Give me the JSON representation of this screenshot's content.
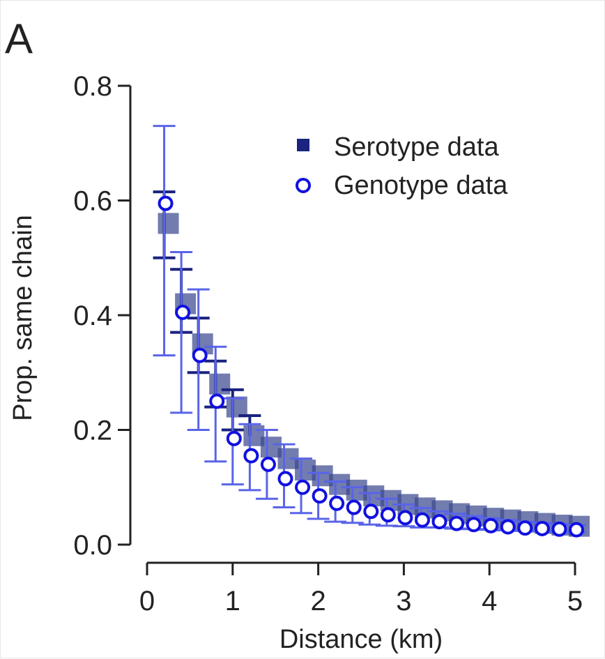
{
  "chart_data": {
    "type": "scatter",
    "panel_label": "A",
    "xlabel": "Distance (km)",
    "ylabel": "Prop. same chain",
    "xlim": [
      0,
      5
    ],
    "ylim": [
      0,
      0.8
    ],
    "x_ticks": [
      0,
      1,
      2,
      3,
      4,
      5
    ],
    "x_tick_labels": [
      "0",
      "1",
      "2",
      "3",
      "4",
      "5"
    ],
    "y_ticks": [
      0,
      0.2,
      0.4,
      0.6,
      0.8
    ],
    "y_tick_labels": [
      "0.0",
      "0.2",
      "0.4",
      "0.6",
      "0.8"
    ],
    "legend_position": "top-right",
    "series": [
      {
        "name": "Serotype data",
        "marker": "square",
        "color": "#1a237e",
        "error_color": "#1a237e",
        "x": [
          0.2,
          0.4,
          0.6,
          0.8,
          1.0,
          1.2,
          1.4,
          1.6,
          1.8,
          2.0,
          2.2,
          2.4,
          2.6,
          2.8,
          3.0,
          3.2,
          3.4,
          3.6,
          3.8,
          4.0,
          4.2,
          4.4,
          4.6,
          4.8,
          5.0
        ],
        "values": [
          0.56,
          0.42,
          0.35,
          0.28,
          0.24,
          0.19,
          0.17,
          0.15,
          0.13,
          0.12,
          0.105,
          0.095,
          0.085,
          0.077,
          0.07,
          0.064,
          0.059,
          0.054,
          0.05,
          0.046,
          0.043,
          0.04,
          0.037,
          0.034,
          0.032
        ],
        "err_low": [
          0.5,
          0.37,
          0.3,
          0.24,
          0.2,
          null,
          null,
          null,
          null,
          null,
          null,
          null,
          null,
          null,
          null,
          null,
          null,
          null,
          null,
          null,
          null,
          null,
          null,
          null,
          null
        ],
        "err_high": [
          0.615,
          0.48,
          0.395,
          0.32,
          0.27,
          0.225,
          null,
          null,
          null,
          null,
          null,
          null,
          null,
          null,
          null,
          null,
          null,
          null,
          null,
          null,
          null,
          null,
          null,
          null,
          null
        ]
      },
      {
        "name": "Genotype data",
        "marker": "circle",
        "color": "#1010e0",
        "error_color": "#5a64e8",
        "x": [
          0.2,
          0.4,
          0.6,
          0.8,
          1.0,
          1.2,
          1.4,
          1.6,
          1.8,
          2.0,
          2.2,
          2.4,
          2.6,
          2.8,
          3.0,
          3.2,
          3.4,
          3.6,
          3.8,
          4.0,
          4.2,
          4.4,
          4.6,
          4.8,
          5.0
        ],
        "values": [
          0.595,
          0.405,
          0.33,
          0.25,
          0.185,
          0.155,
          0.14,
          0.115,
          0.1,
          0.085,
          0.072,
          0.065,
          0.058,
          0.052,
          0.047,
          0.043,
          0.04,
          0.037,
          0.035,
          0.033,
          0.031,
          0.029,
          0.028,
          0.027,
          0.026
        ],
        "err_low": [
          0.33,
          0.23,
          0.2,
          0.145,
          0.105,
          0.095,
          0.08,
          0.065,
          0.055,
          0.045,
          0.04,
          0.038,
          0.035,
          0.033,
          0.032,
          0.03,
          0.03,
          0.028,
          0.027,
          0.026,
          0.025,
          0.024,
          0.023,
          0.022,
          0.021
        ],
        "err_high": [
          0.73,
          0.51,
          0.445,
          0.345,
          0.255,
          0.21,
          0.2,
          0.175,
          0.15,
          0.125,
          0.11,
          0.1,
          0.09,
          0.08,
          0.07,
          0.064,
          0.058,
          0.054,
          0.05,
          0.046,
          0.043,
          0.04,
          0.038,
          0.036,
          0.034
        ]
      }
    ]
  }
}
